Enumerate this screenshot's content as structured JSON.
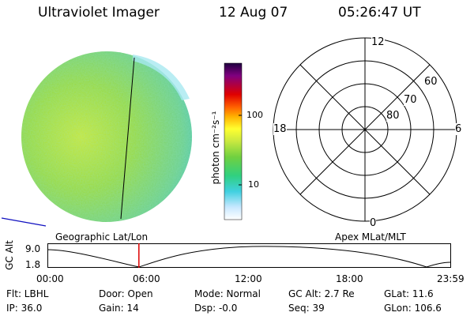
{
  "header": {
    "title": "Ultraviolet Imager",
    "date": "12 Aug 07",
    "time": "05:26:47 UT"
  },
  "colorbar": {
    "unit_label": "photon cm⁻²s⁻¹",
    "tick_100": "100",
    "tick_10": "10"
  },
  "polar": {
    "label_top": "12",
    "label_left": "18",
    "label_right": "6",
    "label_bottom": "0",
    "lat_60": "60",
    "lat_70": "70",
    "lat_80": "80",
    "caption": "Apex MLat/MLT"
  },
  "image_panel": {
    "caption": "Geographic Lat/Lon"
  },
  "altitude_plot": {
    "ylabel": "GC Alt",
    "y_top": "9.0",
    "y_bottom": "1.8",
    "x_ticks": [
      "00:00",
      "06:00",
      "12:00",
      "18:00",
      "23:59"
    ],
    "current_marker_hours": 5.45
  },
  "footer": {
    "row1": {
      "flt": "Flt: LBHL",
      "door": "Door: Open",
      "mode": "Mode: Normal",
      "gcalt": "GC Alt: 2.7 Re",
      "glat": "GLat:  11.6"
    },
    "row2": {
      "ip": "IP: 36.0",
      "gain": "Gain: 14",
      "dsp": "Dsp:   -0.0",
      "seq": "Seq: 39",
      "glon": "GLon: 106.6"
    }
  },
  "colors": {
    "marker": "#dd0000",
    "disk_base": "#8fdc44"
  }
}
